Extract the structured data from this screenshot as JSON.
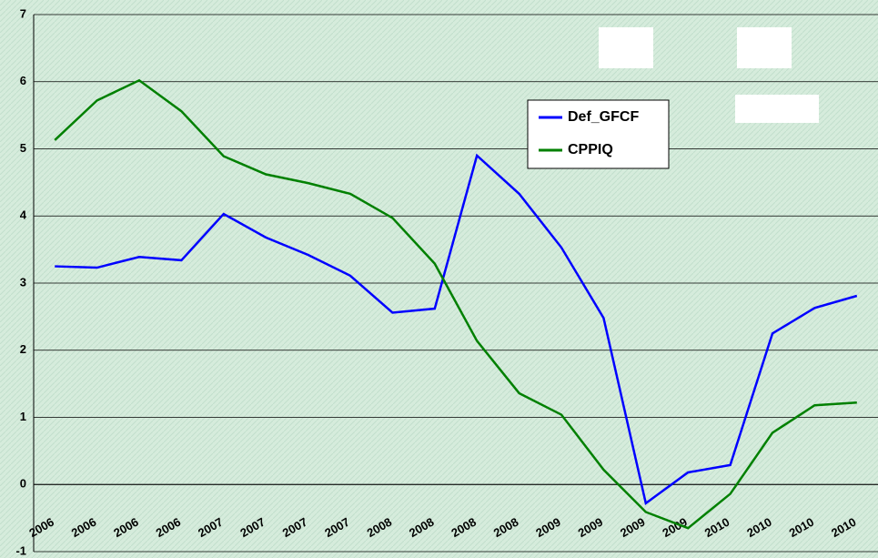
{
  "chart_data": {
    "type": "line",
    "categories": [
      "2006",
      "2006",
      "2006",
      "2006",
      "2007",
      "2007",
      "2007",
      "2007",
      "2008",
      "2008",
      "2008",
      "2008",
      "2009",
      "2009",
      "2009",
      "2009",
      "2010",
      "2010",
      "2010",
      "2010"
    ],
    "series": [
      {
        "name": "Def_GFCF",
        "color": "#0000ff",
        "values": [
          3.25,
          3.23,
          3.39,
          3.34,
          4.03,
          3.68,
          3.42,
          3.11,
          2.56,
          2.62,
          4.9,
          4.33,
          3.53,
          2.48,
          -0.28,
          0.18,
          0.29,
          2.25,
          2.63,
          2.81
        ]
      },
      {
        "name": "CPPIQ",
        "color": "#008000",
        "values": [
          5.13,
          5.72,
          6.02,
          5.56,
          4.89,
          4.62,
          4.49,
          4.33,
          3.97,
          3.29,
          2.14,
          1.36,
          1.04,
          0.22,
          -0.41,
          -0.65,
          -0.14,
          0.77,
          1.18,
          1.22
        ]
      }
    ],
    "ylim": [
      -1,
      7
    ],
    "yticks": [
      -1,
      0,
      1,
      2,
      3,
      4,
      5,
      6,
      7
    ],
    "grid": true
  }
}
